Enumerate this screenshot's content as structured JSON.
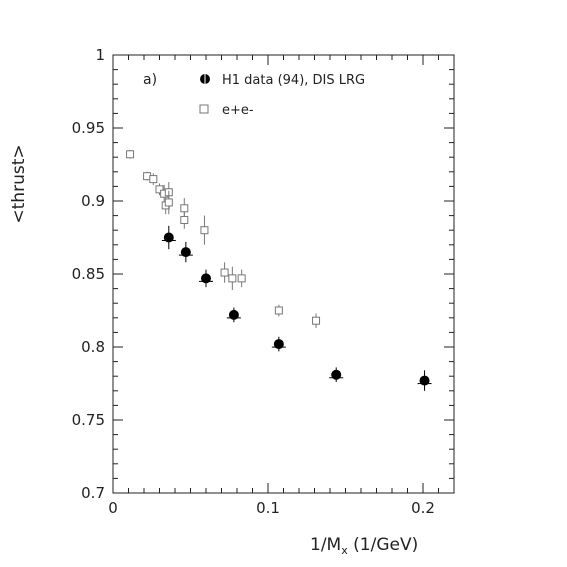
{
  "chart_data": {
    "type": "scatter",
    "panel_label": "a)",
    "xlabel_main": "1/M",
    "xlabel_sub": "x",
    "xlabel_unit": " (1/GeV)",
    "ylabel": "<thrust>",
    "xlim": [
      0,
      0.22
    ],
    "ylim": [
      0.7,
      1.0
    ],
    "x_ticks": [
      0,
      0.1,
      0.2
    ],
    "x_tick_labels": [
      "0",
      "0.1",
      "0.2"
    ],
    "y_ticks": [
      0.7,
      0.75,
      0.8,
      0.85,
      0.9,
      0.95,
      1.0
    ],
    "y_tick_labels": [
      "0.7",
      "0.75",
      "0.8",
      "0.85",
      "0.9",
      "0.95",
      "1"
    ],
    "legend_placement": "top-center",
    "series": [
      {
        "name": "H1 data (94), DIS LRG",
        "marker": "filled-circle",
        "color": "#000000",
        "points": [
          {
            "x": 0.036,
            "y": 0.875,
            "err": 0.008
          },
          {
            "x": 0.047,
            "y": 0.865,
            "err": 0.007
          },
          {
            "x": 0.06,
            "y": 0.847,
            "err": 0.006
          },
          {
            "x": 0.078,
            "y": 0.822,
            "err": 0.005
          },
          {
            "x": 0.107,
            "y": 0.802,
            "err": 0.005
          },
          {
            "x": 0.144,
            "y": 0.781,
            "err": 0.005
          },
          {
            "x": 0.201,
            "y": 0.777,
            "err": 0.007
          }
        ]
      },
      {
        "name": "e+e-",
        "marker": "open-square",
        "color": "#777777",
        "points": [
          {
            "x": 0.011,
            "y": 0.932,
            "err": 0.003
          },
          {
            "x": 0.022,
            "y": 0.917,
            "err": 0.003
          },
          {
            "x": 0.026,
            "y": 0.915,
            "err": 0.004
          },
          {
            "x": 0.03,
            "y": 0.908,
            "err": 0.004
          },
          {
            "x": 0.033,
            "y": 0.905,
            "err": 0.006
          },
          {
            "x": 0.034,
            "y": 0.897,
            "err": 0.006
          },
          {
            "x": 0.036,
            "y": 0.906,
            "err": 0.007
          },
          {
            "x": 0.036,
            "y": 0.899,
            "err": 0.008
          },
          {
            "x": 0.046,
            "y": 0.895,
            "err": 0.007
          },
          {
            "x": 0.046,
            "y": 0.887,
            "err": 0.006
          },
          {
            "x": 0.059,
            "y": 0.88,
            "err": 0.01
          },
          {
            "x": 0.072,
            "y": 0.851,
            "err": 0.007
          },
          {
            "x": 0.077,
            "y": 0.847,
            "err": 0.008
          },
          {
            "x": 0.083,
            "y": 0.847,
            "err": 0.006
          },
          {
            "x": 0.107,
            "y": 0.825,
            "err": 0.004
          },
          {
            "x": 0.131,
            "y": 0.818,
            "err": 0.005
          }
        ]
      }
    ]
  }
}
